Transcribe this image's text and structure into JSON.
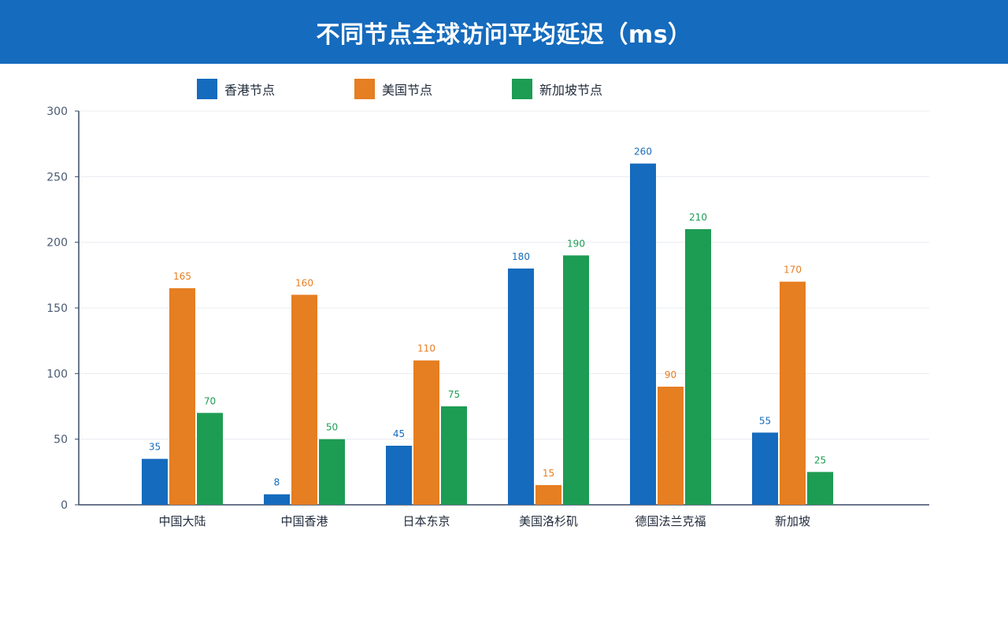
{
  "header": {
    "title": "不同节点全球访问平均延迟（ms）"
  },
  "colors": {
    "header_bg": "#156bbd",
    "axis": "#3a4a66",
    "grid": "#e8ecf0",
    "tick_text": "#4a5a72",
    "category_text": "#1f2a3a"
  },
  "chart_data": {
    "type": "bar",
    "title": "不同节点全球访问平均延迟（ms）",
    "xlabel": "",
    "ylabel": "",
    "ylim": [
      0,
      300
    ],
    "yticks": [
      0,
      50,
      100,
      150,
      200,
      250,
      300
    ],
    "grid": true,
    "legend": "top",
    "categories": [
      "中国大陆",
      "中国香港",
      "日本东京",
      "美国洛杉矶",
      "德国法兰克福",
      "新加坡"
    ],
    "series": [
      {
        "name": "香港节点",
        "color": "#156bbd",
        "values": [
          35,
          8,
          45,
          180,
          260,
          55
        ]
      },
      {
        "name": "美国节点",
        "color": "#e67e22",
        "values": [
          165,
          160,
          110,
          15,
          90,
          170
        ]
      },
      {
        "name": "新加坡节点",
        "color": "#1d9c53",
        "values": [
          70,
          50,
          75,
          190,
          210,
          25
        ]
      }
    ]
  }
}
